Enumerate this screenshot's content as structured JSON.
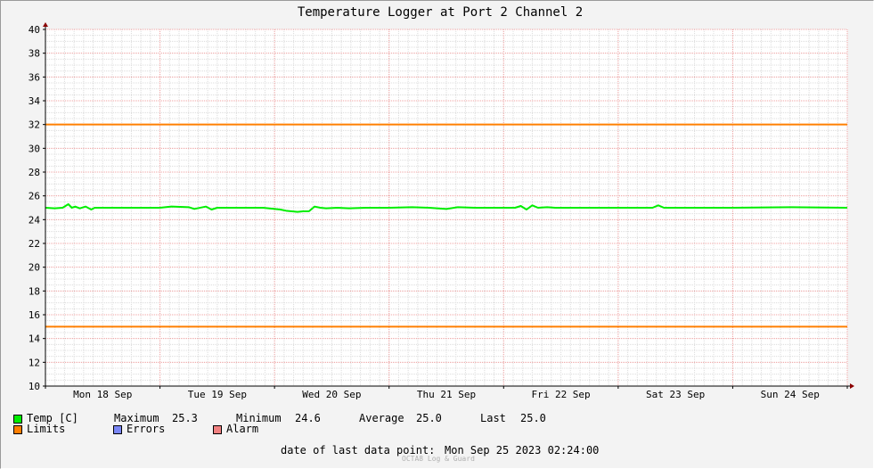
{
  "chart_data": {
    "type": "line",
    "title": "Temperature Logger at Port 2 Channel 2",
    "xlabel": "",
    "ylabel": "",
    "ylim": [
      10,
      40
    ],
    "y_ticks": [
      10,
      12,
      14,
      16,
      18,
      20,
      22,
      24,
      26,
      28,
      30,
      32,
      34,
      36,
      38,
      40
    ],
    "x_range_days": [
      0,
      7
    ],
    "x_tick_labels": [
      {
        "label": "Mon 18 Sep",
        "day": 0.5
      },
      {
        "label": "Tue 19 Sep",
        "day": 1.5
      },
      {
        "label": "Wed 20 Sep",
        "day": 2.5
      },
      {
        "label": "Thu 21 Sep",
        "day": 3.5
      },
      {
        "label": "Fri 22 Sep",
        "day": 4.5
      },
      {
        "label": "Sat 23 Sep",
        "day": 5.5
      },
      {
        "label": "Sun 24 Sep",
        "day": 6.5
      }
    ],
    "grid": true,
    "series": [
      {
        "name": "Temp [C]",
        "color": "#00ee00",
        "x": [
          0.0,
          0.08,
          0.15,
          0.2,
          0.23,
          0.26,
          0.3,
          0.35,
          0.4,
          0.43,
          0.46,
          0.5,
          0.55,
          1.0,
          1.1,
          1.25,
          1.3,
          1.4,
          1.45,
          1.5,
          1.6,
          1.9,
          2.05,
          2.1,
          2.2,
          2.25,
          2.3,
          2.35,
          2.4,
          2.45,
          2.55,
          2.65,
          2.8,
          3.0,
          3.2,
          3.35,
          3.5,
          3.6,
          3.75,
          4.0,
          4.1,
          4.15,
          4.2,
          4.25,
          4.3,
          4.38,
          4.45,
          4.6,
          4.8,
          5.0,
          5.3,
          5.35,
          5.4,
          5.6,
          6.0,
          6.5,
          7.0
        ],
        "values": [
          25.0,
          24.95,
          25.0,
          25.3,
          25.0,
          25.1,
          24.95,
          25.1,
          24.85,
          25.0,
          25.0,
          25.0,
          25.0,
          25.0,
          25.1,
          25.05,
          24.9,
          25.1,
          24.85,
          25.0,
          25.0,
          25.0,
          24.85,
          24.75,
          24.65,
          24.7,
          24.7,
          25.1,
          25.0,
          24.95,
          25.0,
          24.95,
          25.0,
          25.0,
          25.05,
          25.0,
          24.9,
          25.05,
          25.0,
          25.0,
          25.0,
          25.15,
          24.85,
          25.2,
          25.0,
          25.05,
          25.0,
          25.0,
          25.0,
          25.0,
          25.0,
          25.2,
          25.0,
          25.0,
          25.0,
          25.05,
          25.0
        ]
      },
      {
        "name": "Limits",
        "color": "#ff7f00",
        "values": [
          32,
          32
        ]
      },
      {
        "name": "Limits",
        "color": "#ff7f00",
        "values": [
          15,
          15
        ]
      }
    ],
    "legend": {
      "temp": {
        "name": "Temp [C]",
        "color": "#00ee00"
      },
      "limits": {
        "name": "Limits",
        "color": "#ff7f00"
      },
      "errors": {
        "name": "Errors",
        "color": "#7a86f5"
      },
      "alarm": {
        "name": "Alarm",
        "color": "#f08080"
      }
    },
    "stats": {
      "max_label": "Maximum",
      "max_value": "25.3",
      "min_label": "Minimum",
      "min_value": "24.6",
      "avg_label": "Average",
      "avg_value": "25.0",
      "last_label": "Last",
      "last_value": "25.0"
    },
    "last_point_label": "date of last data point:",
    "last_point_value": "Mon Sep 25 2023 02:24:00",
    "watermark": "OCTA8 Log & Guard"
  }
}
